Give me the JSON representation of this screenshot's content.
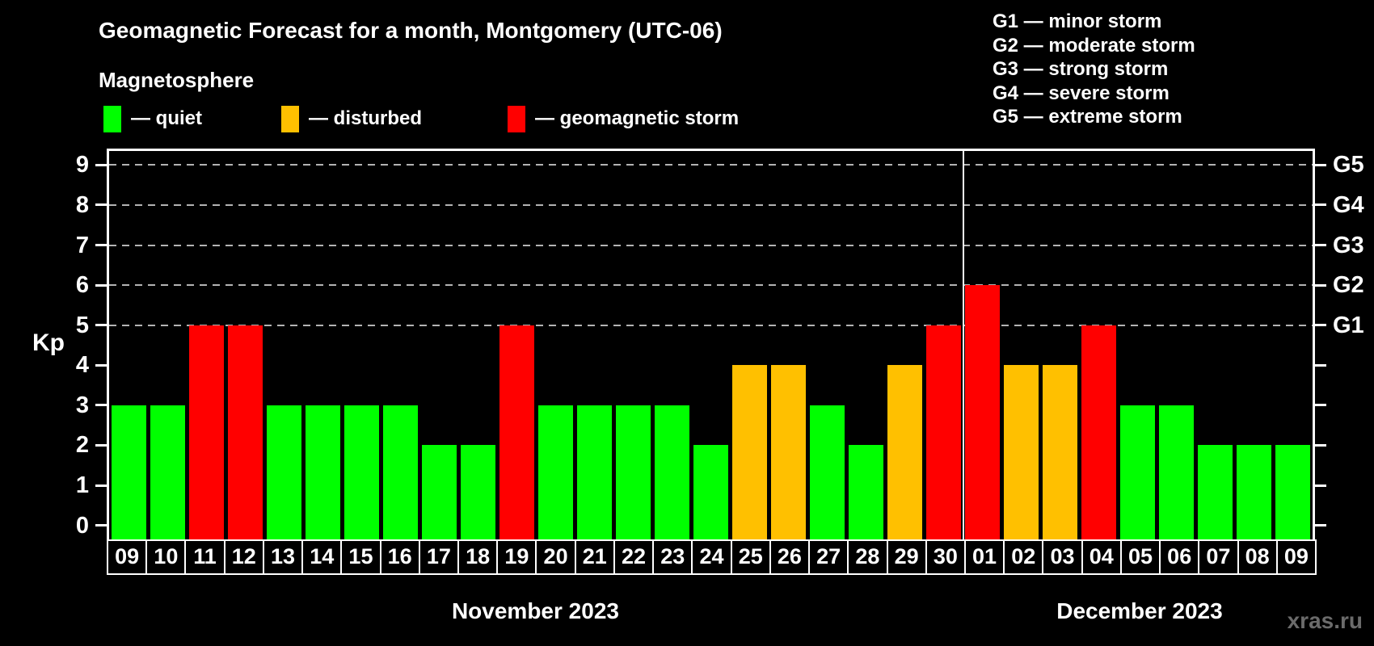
{
  "chart_data": {
    "type": "bar",
    "title": "Geomagnetic Forecast for a month, Montgomery (UTC-06)",
    "subtitle": "Magnetosphere",
    "ylabel": "Kp",
    "ylim": [
      0,
      9
    ],
    "y_ticks": [
      0,
      1,
      2,
      3,
      4,
      5,
      6,
      7,
      8,
      9
    ],
    "grid_levels": [
      5,
      6,
      7,
      8,
      9
    ],
    "right_axis": [
      {
        "kp": 5,
        "label": "G1"
      },
      {
        "kp": 6,
        "label": "G2"
      },
      {
        "kp": 7,
        "label": "G3"
      },
      {
        "kp": 8,
        "label": "G4"
      },
      {
        "kp": 9,
        "label": "G5"
      }
    ],
    "legend": [
      {
        "key": "quiet",
        "label": "— quiet",
        "color": "#00ff00"
      },
      {
        "key": "disturbed",
        "label": "— disturbed",
        "color": "#ffc000"
      },
      {
        "key": "storm",
        "label": "— geomagnetic storm",
        "color": "#ff0000"
      }
    ],
    "g_scale_legend": [
      "G1 — minor storm",
      "G2 — moderate storm",
      "G3 — strong storm",
      "G4 — severe storm",
      "G5 — extreme storm"
    ],
    "categories": [
      "09",
      "10",
      "11",
      "12",
      "13",
      "14",
      "15",
      "16",
      "17",
      "18",
      "19",
      "20",
      "21",
      "22",
      "23",
      "24",
      "25",
      "26",
      "27",
      "28",
      "29",
      "30",
      "01",
      "02",
      "03",
      "04",
      "05",
      "06",
      "07",
      "08",
      "09"
    ],
    "values": [
      3,
      3,
      5,
      5,
      3,
      3,
      3,
      3,
      2,
      2,
      5,
      3,
      3,
      3,
      3,
      2,
      4,
      4,
      3,
      2,
      4,
      5,
      6,
      4,
      4,
      5,
      3,
      3,
      2,
      2,
      2
    ],
    "status": [
      "quiet",
      "quiet",
      "storm",
      "storm",
      "quiet",
      "quiet",
      "quiet",
      "quiet",
      "quiet",
      "quiet",
      "storm",
      "quiet",
      "quiet",
      "quiet",
      "quiet",
      "quiet",
      "disturbed",
      "disturbed",
      "quiet",
      "quiet",
      "disturbed",
      "storm",
      "storm",
      "disturbed",
      "disturbed",
      "storm",
      "quiet",
      "quiet",
      "quiet",
      "quiet",
      "quiet"
    ],
    "months": [
      {
        "label": "November 2023",
        "span": 22
      },
      {
        "label": "December 2023",
        "span": 9
      }
    ],
    "colors": {
      "quiet": "#00ff00",
      "disturbed": "#ffc000",
      "storm": "#ff0000",
      "axis": "#ffffff",
      "grid": "#b3b3b3",
      "background": "#000000",
      "watermark": "#6b6b6b"
    },
    "watermark": "xras.ru"
  }
}
